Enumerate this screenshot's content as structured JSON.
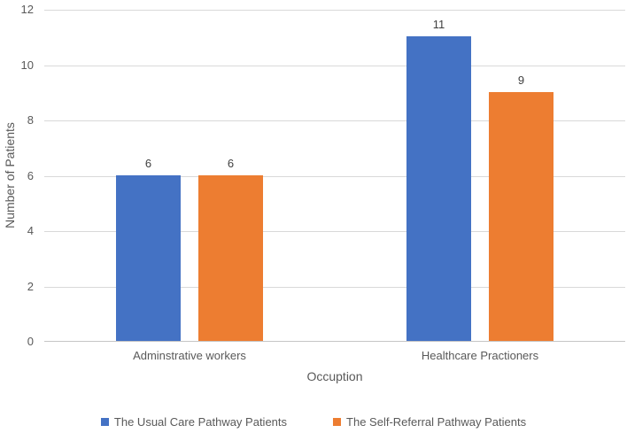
{
  "chart_data": {
    "type": "bar",
    "title": "",
    "categories": [
      "Adminstrative workers",
      "Healthcare Practioners"
    ],
    "series": [
      {
        "name": "The Usual Care Pathway Patients",
        "color": "#4472C4",
        "values": [
          6,
          11
        ]
      },
      {
        "name": "The Self-Referral Pathway Patients",
        "color": "#ED7D31",
        "values": [
          6,
          9
        ]
      }
    ],
    "data_labels_shown": true,
    "xlabel": "Occuption",
    "ylabel": "Number of Patients",
    "ylim": [
      0,
      12
    ],
    "ytick_step": 2,
    "yticks": [
      "0",
      "2",
      "4",
      "6",
      "8",
      "10",
      "12"
    ],
    "grid": true,
    "legend_position": "bottom"
  },
  "colors": {
    "gridline": "#D9D9D9",
    "axis_line": "#C6C6C6",
    "tick_text": "#595959",
    "data_label_text": "#404040",
    "background": "#FFFFFF",
    "series_blue": "#4472C4",
    "series_orange": "#ED7D31"
  }
}
